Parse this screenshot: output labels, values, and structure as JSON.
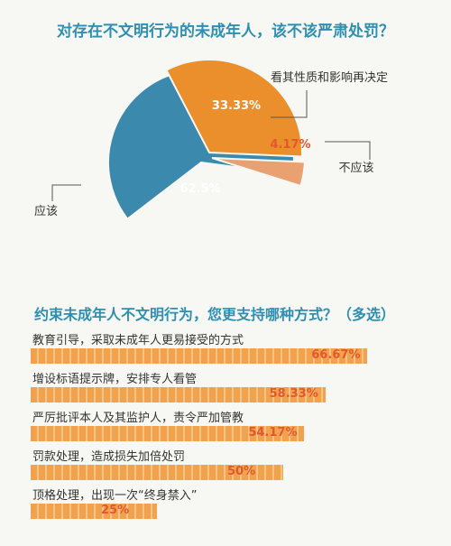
{
  "chart_data": [
    {
      "type": "pie",
      "title": "对存在不文明行为的未成年人，该不该严肃处罚？",
      "slices": [
        {
          "label": "应该",
          "value": 62.5,
          "display": "62.5%",
          "color": "#3b89ad"
        },
        {
          "label": "看其性质和影响再决定",
          "value": 33.33,
          "display": "33.33%",
          "color": "#eb8f2c"
        },
        {
          "label": "不应该",
          "value": 4.17,
          "display": "4.17%",
          "color": "#eaa171"
        }
      ]
    },
    {
      "type": "bar",
      "title": "约束未成年人不文明行为，您更支持哪种方式？（多选）",
      "categories": [
        "教育引导，采取未成年人更易接受的方式",
        "增设标语提示牌，安排专人看管",
        "严厉批评本人及其监护人，责令严加管教",
        "罚款处理，造成损失加倍处罚",
        "顶格处理，出现一次“终身禁入”"
      ],
      "values": [
        66.67,
        58.33,
        54.17,
        50,
        25
      ],
      "display": [
        "66.67%",
        "58.33%",
        "54.17%",
        "50%",
        "25%"
      ],
      "color": "#f2a24c"
    }
  ]
}
